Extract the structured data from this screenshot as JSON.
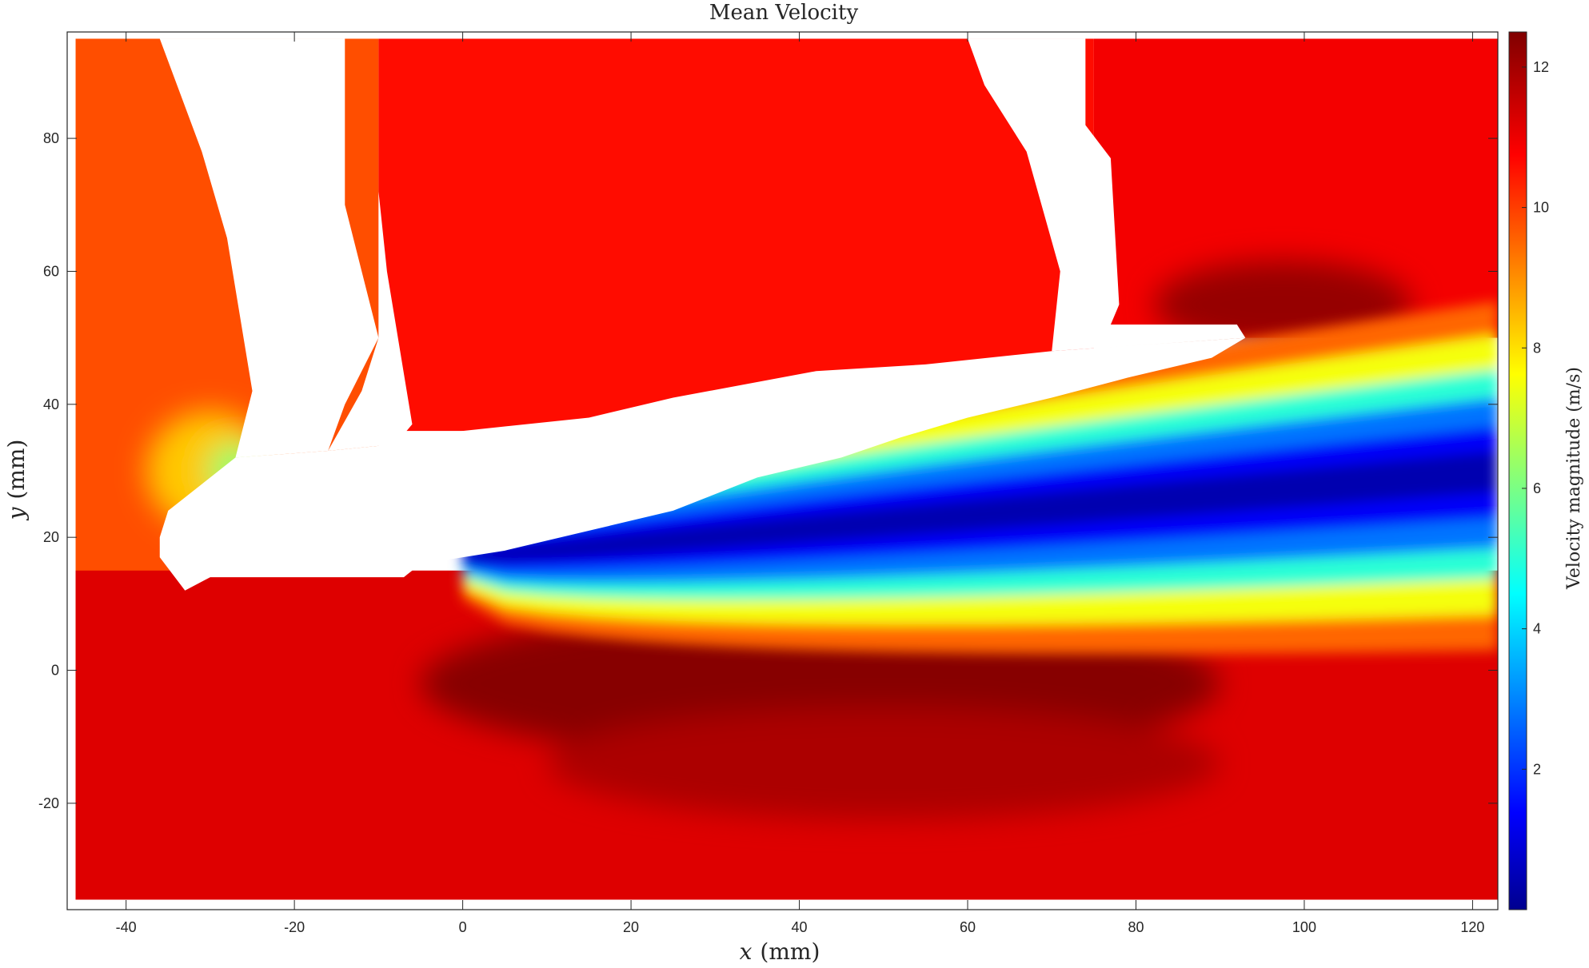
{
  "chart_data": {
    "type": "heatmap",
    "title": "Mean Velocity",
    "xlabel": {
      "var": "x",
      "unit": "(mm)"
    },
    "ylabel": {
      "var": "y",
      "unit": "(mm)"
    },
    "xlim": [
      -47,
      123
    ],
    "ylim": [
      -36,
      96
    ],
    "data_extent": {
      "x": [
        -46,
        123
      ],
      "y": [
        -34.5,
        95
      ]
    },
    "xticks": [
      -40,
      -20,
      0,
      20,
      40,
      60,
      80,
      100,
      120
    ],
    "yticks": [
      -20,
      0,
      20,
      40,
      60,
      80
    ],
    "colormap": "jet",
    "colorbar": {
      "label": "Velocity magnitude (m/s)",
      "range": [
        0,
        12.5
      ],
      "ticks": [
        2,
        4,
        6,
        8,
        10,
        12
      ]
    },
    "regions": [
      {
        "x": [
          -46,
          -10
        ],
        "y": [
          -34.5,
          95
        ],
        "value": 9.8
      },
      {
        "x": [
          -10,
          75
        ],
        "y": [
          36,
          95
        ],
        "value": 10.6
      },
      {
        "x": [
          75,
          123
        ],
        "y": [
          50,
          95
        ],
        "value": 10.9
      },
      {
        "x": [
          -46,
          123
        ],
        "y": [
          -34.5,
          15
        ],
        "value": 11.2
      }
    ],
    "features": [
      {
        "name": "jet core (low velocity wake)",
        "x": [
          0,
          123
        ],
        "y_center": [
          15,
          31
        ],
        "value_min": 0.2
      },
      {
        "name": "high-speed region below plate",
        "x": [
          -5,
          90
        ],
        "y_center": [
          0,
          -3
        ],
        "value_max": 12.4
      },
      {
        "name": "high-speed region above tip",
        "x": [
          85,
          110
        ],
        "y_center": [
          55,
          52
        ],
        "value_max": 12.2
      },
      {
        "name": "slow region near vertical strut",
        "x": [
          -34,
          -24
        ],
        "y_center": [
          30,
          30
        ],
        "value_min": 6.3
      }
    ],
    "masked_regions": [
      {
        "name": "left strut",
        "polygon": [
          [
            -36,
            95
          ],
          [
            -26,
            95
          ],
          [
            -14,
            95
          ],
          [
            -14,
            70
          ],
          [
            -12,
            60
          ],
          [
            -10,
            50
          ],
          [
            -14,
            40
          ],
          [
            -16,
            33
          ],
          [
            -27,
            32
          ],
          [
            -25,
            42
          ],
          [
            -28,
            65
          ],
          [
            -31,
            78
          ],
          [
            -36,
            95
          ]
        ]
      },
      {
        "name": "middle strut",
        "polygon": [
          [
            -10,
            95
          ],
          [
            -10,
            50
          ],
          [
            -12,
            42
          ],
          [
            -16,
            33
          ],
          [
            -8,
            34
          ],
          [
            -6,
            37
          ],
          [
            -9,
            60
          ],
          [
            -10,
            72
          ],
          [
            -10,
            95
          ]
        ]
      },
      {
        "name": "right strut",
        "polygon": [
          [
            60,
            95
          ],
          [
            74,
            95
          ],
          [
            74,
            82
          ],
          [
            77,
            77
          ],
          [
            78,
            55
          ],
          [
            77,
            52
          ],
          [
            92,
            52
          ],
          [
            93,
            50
          ],
          [
            70,
            48
          ],
          [
            71,
            60
          ],
          [
            67,
            78
          ],
          [
            62,
            88
          ],
          [
            60,
            95
          ]
        ]
      },
      {
        "name": "plate",
        "polygon": [
          [
            -36,
            20
          ],
          [
            -35,
            24
          ],
          [
            -27,
            32
          ],
          [
            -16,
            33
          ],
          [
            -8,
            34
          ],
          [
            0,
            36
          ],
          [
            15,
            38
          ],
          [
            25,
            41
          ],
          [
            42,
            45
          ],
          [
            55,
            46
          ],
          [
            70,
            48
          ],
          [
            93,
            50
          ],
          [
            89,
            47
          ],
          [
            79,
            44
          ],
          [
            70,
            41
          ],
          [
            60,
            38
          ],
          [
            52,
            35
          ],
          [
            45,
            32
          ],
          [
            35,
            29
          ],
          [
            25,
            24
          ],
          [
            15,
            21
          ],
          [
            5,
            18
          ],
          [
            -5,
            16
          ],
          [
            -7,
            14
          ],
          [
            -30,
            14
          ],
          [
            -33,
            12
          ],
          [
            -36,
            17
          ],
          [
            -36,
            20
          ]
        ]
      }
    ]
  }
}
